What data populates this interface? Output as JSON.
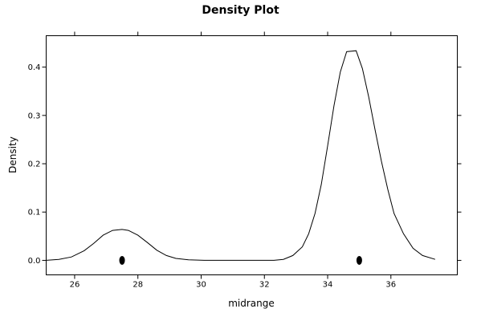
{
  "chart_data": {
    "type": "line",
    "title": "Density Plot",
    "xlabel": "midrange",
    "ylabel": "Density",
    "xlim": [
      25.1,
      38.1
    ],
    "ylim": [
      -0.03,
      0.465
    ],
    "x_ticks": [
      26,
      28,
      30,
      32,
      34,
      36
    ],
    "y_ticks": [
      0.0,
      0.1,
      0.2,
      0.3,
      0.4
    ],
    "x_tick_labels": [
      "26",
      "28",
      "30",
      "32",
      "34",
      "36"
    ],
    "y_tick_labels": [
      "0.0",
      "0.1",
      "0.2",
      "0.3",
      "0.4"
    ],
    "grid": false,
    "series": [
      {
        "x": [
          25.1,
          25.5,
          25.9,
          26.3,
          26.6,
          26.9,
          27.2,
          27.5,
          27.7,
          28.0,
          28.3,
          28.6,
          28.9,
          29.2,
          29.6,
          30.1,
          30.6,
          31.2,
          31.8,
          32.3,
          32.6,
          32.9,
          33.2,
          33.4,
          33.6,
          33.8,
          34.0,
          34.2,
          34.4,
          34.6,
          34.9,
          35.1,
          35.3,
          35.5,
          35.7,
          35.9,
          36.1,
          36.4,
          36.7,
          37.0,
          37.4
        ],
        "y": [
          0.0,
          0.002,
          0.007,
          0.02,
          0.035,
          0.052,
          0.062,
          0.064,
          0.062,
          0.052,
          0.037,
          0.021,
          0.01,
          0.004,
          0.001,
          0.0,
          0.0,
          0.0,
          0.0,
          0.0,
          0.002,
          0.01,
          0.028,
          0.055,
          0.097,
          0.157,
          0.237,
          0.32,
          0.39,
          0.432,
          0.434,
          0.397,
          0.338,
          0.27,
          0.205,
          0.147,
          0.097,
          0.055,
          0.025,
          0.01,
          0.002
        ]
      }
    ],
    "rug": {
      "x": [
        27.5,
        35.0
      ],
      "y": [
        0.0,
        0.0
      ]
    }
  }
}
